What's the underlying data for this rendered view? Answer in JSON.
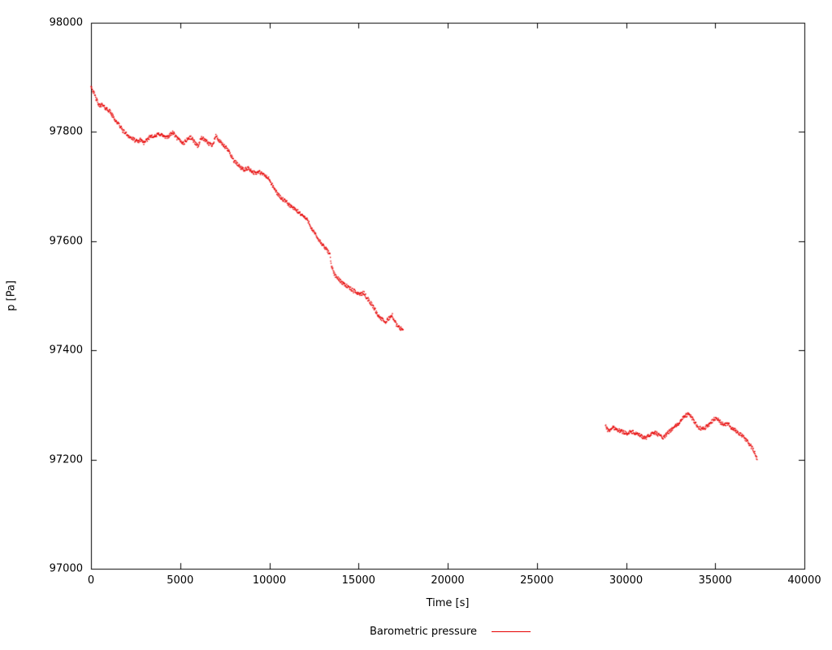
{
  "chart_data": {
    "type": "scatter",
    "title": "",
    "xlabel": "Time [s]",
    "ylabel": "p [Pa]",
    "xlim": [
      0,
      40000
    ],
    "ylim": [
      97000,
      98000
    ],
    "xticks": [
      0,
      5000,
      10000,
      15000,
      20000,
      25000,
      30000,
      35000,
      40000
    ],
    "yticks": [
      97000,
      97200,
      97400,
      97600,
      97800,
      98000
    ],
    "grid": false,
    "frame": true,
    "legend": {
      "label": "Barometric pressure",
      "position": "bottom-center"
    },
    "series": [
      {
        "name": "Barometric pressure",
        "color": "#e60000",
        "noise_pa": 3.5,
        "segments": [
          [
            [
              0,
              97885
            ],
            [
              150,
              97872
            ],
            [
              300,
              97860
            ],
            [
              450,
              97848
            ],
            [
              600,
              97850
            ],
            [
              750,
              97845
            ],
            [
              900,
              97842
            ],
            [
              1050,
              97838
            ],
            [
              1200,
              97830
            ],
            [
              1400,
              97820
            ],
            [
              1600,
              97812
            ],
            [
              1800,
              97802
            ],
            [
              2000,
              97796
            ],
            [
              2200,
              97790
            ],
            [
              2400,
              97786
            ],
            [
              2600,
              97782
            ],
            [
              2800,
              97786
            ],
            [
              3000,
              97779
            ],
            [
              3200,
              97788
            ],
            [
              3400,
              97794
            ],
            [
              3600,
              97791
            ],
            [
              3800,
              97797
            ],
            [
              4000,
              97794
            ],
            [
              4200,
              97789
            ],
            [
              4400,
              97794
            ],
            [
              4600,
              97799
            ],
            [
              4800,
              97789
            ],
            [
              5000,
              97784
            ],
            [
              5200,
              97779
            ],
            [
              5400,
              97787
            ],
            [
              5600,
              97790
            ],
            [
              5800,
              97782
            ],
            [
              6000,
              97774
            ],
            [
              6200,
              97790
            ],
            [
              6400,
              97784
            ],
            [
              6600,
              97779
            ],
            [
              6800,
              97776
            ],
            [
              7000,
              97793
            ],
            [
              7200,
              97783
            ],
            [
              7400,
              97776
            ],
            [
              7600,
              97770
            ],
            [
              7800,
              97761
            ],
            [
              8000,
              97748
            ],
            [
              8200,
              97741
            ],
            [
              8400,
              97735
            ],
            [
              8600,
              97730
            ],
            [
              8800,
              97734
            ],
            [
              9000,
              97729
            ],
            [
              9200,
              97724
            ],
            [
              9400,
              97727
            ],
            [
              9600,
              97723
            ],
            [
              9800,
              97719
            ],
            [
              10000,
              97713
            ],
            [
              10200,
              97700
            ],
            [
              10400,
              97690
            ],
            [
              10600,
              97681
            ],
            [
              10800,
              97675
            ],
            [
              11000,
              97670
            ],
            [
              11200,
              97664
            ],
            [
              11400,
              97659
            ],
            [
              11600,
              97654
            ],
            [
              11800,
              97649
            ],
            [
              12000,
              97643
            ],
            [
              12200,
              97636
            ],
            [
              12400,
              97621
            ],
            [
              12600,
              97611
            ],
            [
              12800,
              97601
            ],
            [
              13000,
              97592
            ],
            [
              13200,
              97585
            ],
            [
              13400,
              97576
            ],
            [
              13500,
              97552
            ],
            [
              13700,
              97536
            ],
            [
              13900,
              97530
            ],
            [
              14100,
              97524
            ],
            [
              14300,
              97519
            ],
            [
              14500,
              97514
            ],
            [
              14700,
              97509
            ],
            [
              14900,
              97506
            ],
            [
              15100,
              97503
            ],
            [
              15300,
              97505
            ],
            [
              15500,
              97495
            ],
            [
              15700,
              97486
            ],
            [
              15900,
              97476
            ],
            [
              16100,
              97464
            ],
            [
              16300,
              97457
            ],
            [
              16500,
              97451
            ],
            [
              16700,
              97459
            ],
            [
              16900,
              97464
            ],
            [
              17100,
              97448
            ],
            [
              17300,
              97441
            ],
            [
              17500,
              97438
            ]
          ],
          [
            [
              28850,
              97263
            ],
            [
              29000,
              97252
            ],
            [
              29150,
              97256
            ],
            [
              29300,
              97259
            ],
            [
              29500,
              97255
            ],
            [
              29700,
              97252
            ],
            [
              29900,
              97250
            ],
            [
              30100,
              97248
            ],
            [
              30300,
              97251
            ],
            [
              30500,
              97248
            ],
            [
              30700,
              97245
            ],
            [
              30900,
              97242
            ],
            [
              31100,
              97239
            ],
            [
              31300,
              97244
            ],
            [
              31500,
              97250
            ],
            [
              31700,
              97248
            ],
            [
              31900,
              97244
            ],
            [
              32100,
              97240
            ],
            [
              32300,
              97247
            ],
            [
              32500,
              97254
            ],
            [
              32700,
              97259
            ],
            [
              32900,
              97264
            ],
            [
              33100,
              97272
            ],
            [
              33300,
              97280
            ],
            [
              33500,
              97283
            ],
            [
              33700,
              97276
            ],
            [
              33900,
              97266
            ],
            [
              34100,
              97258
            ],
            [
              34300,
              97256
            ],
            [
              34500,
              97260
            ],
            [
              34700,
              97266
            ],
            [
              34900,
              97273
            ],
            [
              35100,
              97276
            ],
            [
              35300,
              97268
            ],
            [
              35500,
              97263
            ],
            [
              35700,
              97266
            ],
            [
              35900,
              97259
            ],
            [
              36100,
              97254
            ],
            [
              36300,
              97249
            ],
            [
              36500,
              97244
            ],
            [
              36700,
              97237
            ],
            [
              36900,
              97229
            ],
            [
              37100,
              97220
            ],
            [
              37300,
              97206
            ],
            [
              37350,
              97200
            ]
          ]
        ]
      }
    ]
  }
}
